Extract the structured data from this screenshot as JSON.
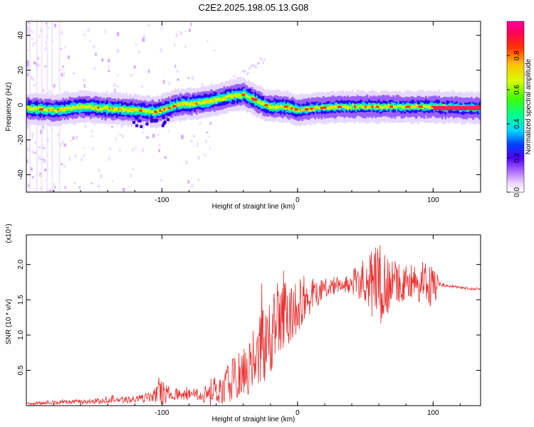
{
  "title": "C2E2.2025.198.05.13.G08",
  "chart_data": [
    {
      "type": "heatmap",
      "xlabel": "Height of straight line (km)",
      "ylabel": "Frequency (Hz)",
      "xlim": [
        -200,
        135
      ],
      "ylim": [
        -50,
        48
      ],
      "xticks": [
        -100,
        0,
        100
      ],
      "yticks": [
        -40,
        -20,
        0,
        20,
        40
      ],
      "colorbar": {
        "label": "Normalized spectral amplitude",
        "range": [
          0,
          1
        ],
        "ticks": [
          0.0,
          0.2,
          0.4,
          0.6,
          0.8
        ],
        "tick_labels": [
          "0.0",
          "0.2",
          "0.4",
          "0.6",
          "0.8"
        ]
      },
      "ridge": {
        "x": [
          -200,
          -180,
          -160,
          -140,
          -120,
          -105,
          -90,
          -75,
          -60,
          -50,
          -40,
          -35,
          -30,
          -25,
          -20,
          -10,
          -5,
          0,
          10,
          30,
          60,
          100,
          135
        ],
        "y": [
          -2,
          -3,
          -1,
          -2,
          -3,
          -4,
          0,
          1,
          3,
          5,
          6,
          4,
          2,
          0,
          -1,
          -1,
          -2,
          -3,
          -2,
          -1,
          -1,
          -1,
          -2
        ]
      }
    },
    {
      "type": "line",
      "xlabel": "Height of straight line (km)",
      "ylabel": "SNR (10 * v/v)",
      "y_multiplier": "(x10⁴)",
      "xlim": [
        -200,
        135
      ],
      "ylim": [
        0,
        2.42
      ],
      "xticks": [
        -100,
        0,
        100
      ],
      "yticks": [
        0.5,
        1.0,
        1.5,
        2.0
      ],
      "ytick_labels": [
        "0.5",
        "1.0",
        "1.5",
        "2.0"
      ],
      "color": "#e83030",
      "envelope": {
        "x": [
          -200,
          -170,
          -140,
          -115,
          -105,
          -100,
          -95,
          -85,
          -70,
          -60,
          -50,
          -40,
          -35,
          -30,
          -25,
          -20,
          -15,
          -10,
          -5,
          0,
          5,
          10,
          15,
          20,
          30,
          40,
          50,
          55,
          60,
          65,
          70,
          80,
          90,
          100,
          105,
          110,
          120,
          135
        ],
        "base": [
          0.03,
          0.05,
          0.07,
          0.1,
          0.14,
          0.18,
          0.17,
          0.15,
          0.15,
          0.22,
          0.35,
          0.45,
          0.55,
          0.7,
          0.85,
          1.0,
          1.15,
          1.25,
          1.3,
          1.4,
          1.5,
          1.55,
          1.62,
          1.68,
          1.72,
          1.74,
          1.73,
          1.72,
          1.7,
          1.72,
          1.72,
          1.73,
          1.73,
          1.73,
          1.72,
          1.7,
          1.67,
          1.65
        ],
        "amp": [
          0.02,
          0.03,
          0.04,
          0.06,
          0.12,
          0.18,
          0.12,
          0.07,
          0.12,
          0.25,
          0.3,
          0.35,
          0.4,
          0.5,
          0.55,
          0.6,
          0.55,
          0.5,
          0.45,
          0.4,
          0.35,
          0.3,
          0.22,
          0.15,
          0.12,
          0.15,
          0.4,
          0.5,
          0.6,
          0.45,
          0.35,
          0.25,
          0.3,
          0.35,
          0.03,
          0.02,
          0.02,
          0.02
        ]
      }
    }
  ]
}
